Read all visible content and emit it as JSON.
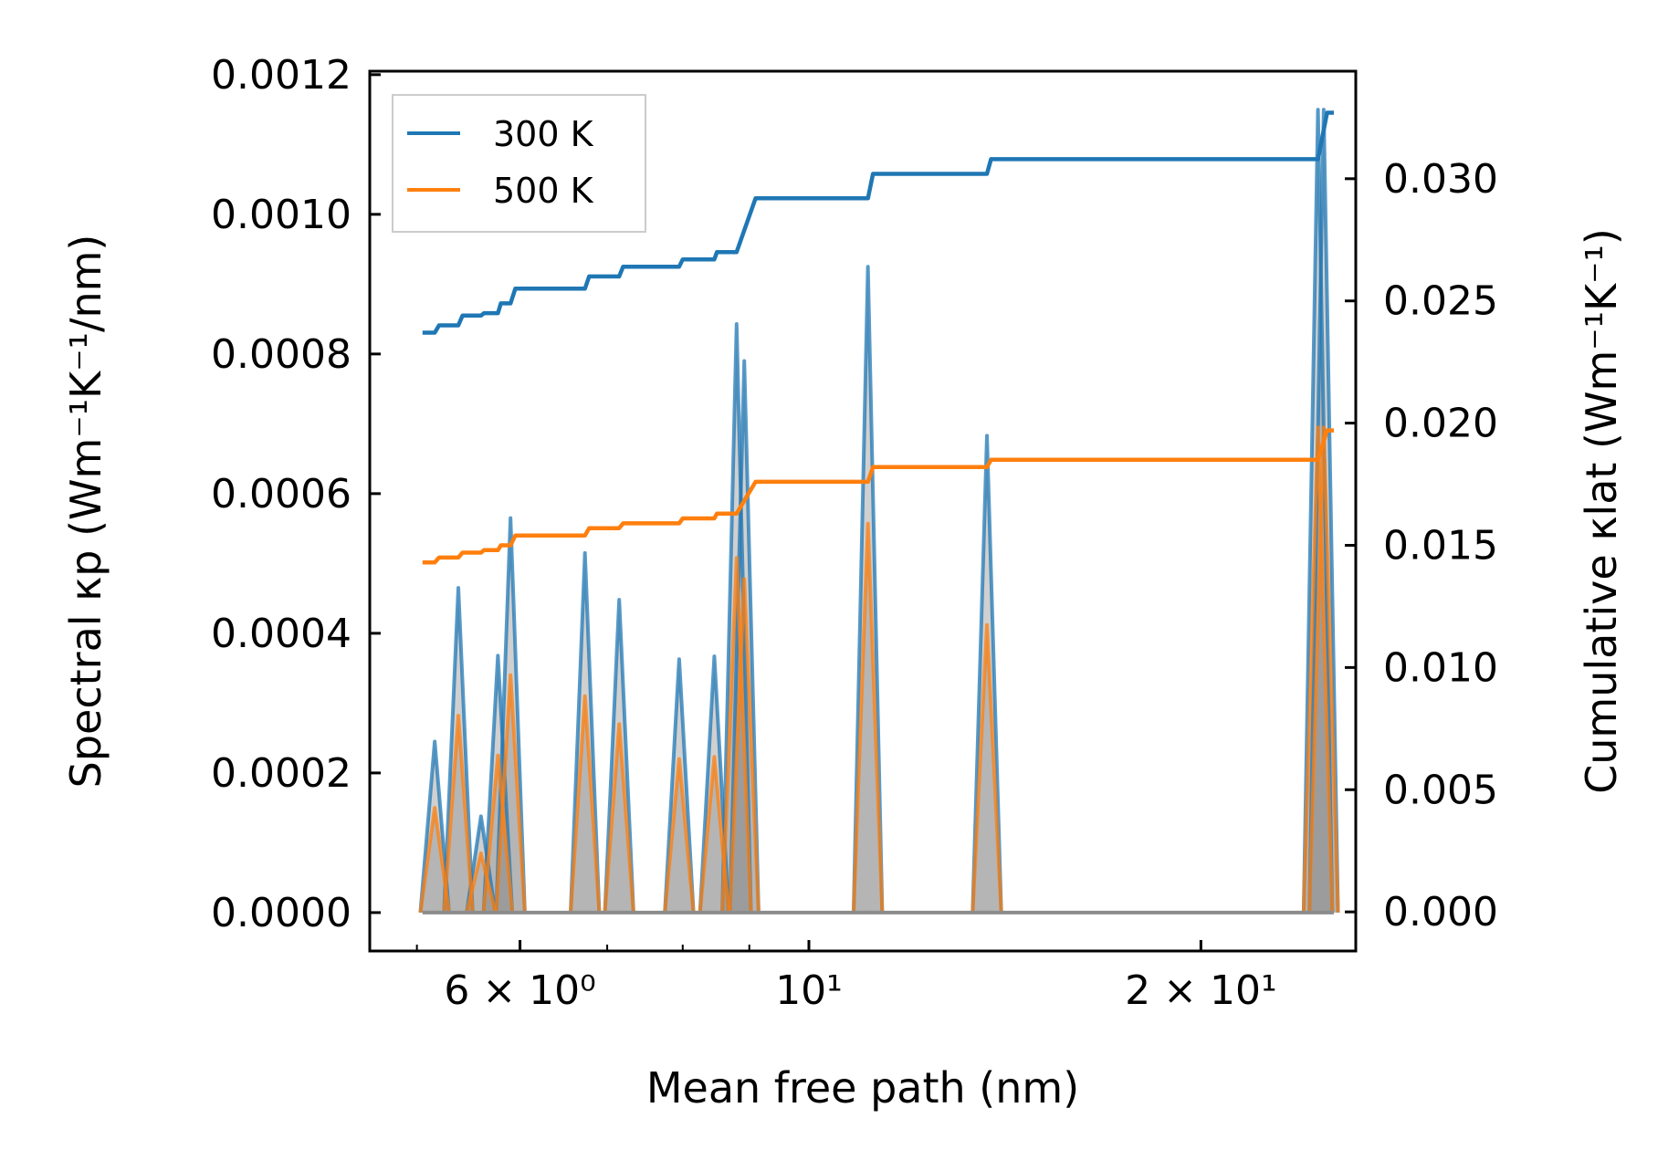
{
  "chart_data": {
    "type": "line",
    "x_scale": "log",
    "xlabel": "Mean free path (nm)",
    "ylabel_left": "Spectral κp (Wm⁻¹K⁻¹/nm)",
    "ylabel_right": "Cumulative κlat (Wm⁻¹K⁻¹)",
    "xlim": [
      4.6,
      26.3
    ],
    "ylim_left": [
      -5.5e-05,
      0.001205
    ],
    "ylim_right": [
      -0.0016,
      0.0344
    ],
    "x_ticks": [
      {
        "value": 6,
        "label": "6 × 10⁰"
      },
      {
        "value": 10,
        "label": "10¹"
      },
      {
        "value": 20,
        "label": "2 × 10¹"
      }
    ],
    "y_ticks_left": [
      {
        "value": 0.0,
        "label": "0.0000"
      },
      {
        "value": 0.0002,
        "label": "0.0002"
      },
      {
        "value": 0.0004,
        "label": "0.0004"
      },
      {
        "value": 0.0006,
        "label": "0.0006"
      },
      {
        "value": 0.0008,
        "label": "0.0008"
      },
      {
        "value": 0.001,
        "label": "0.0010"
      },
      {
        "value": 0.0012,
        "label": "0.0012"
      }
    ],
    "y_ticks_right": [
      {
        "value": 0.0,
        "label": "0.000"
      },
      {
        "value": 0.005,
        "label": "0.005"
      },
      {
        "value": 0.01,
        "label": "0.010"
      },
      {
        "value": 0.015,
        "label": "0.015"
      },
      {
        "value": 0.02,
        "label": "0.020"
      },
      {
        "value": 0.025,
        "label": "0.025"
      },
      {
        "value": 0.03,
        "label": "0.030"
      }
    ],
    "legend": [
      {
        "name": "300 K",
        "color": "#1f77b4"
      },
      {
        "name": "500 K",
        "color": "#ff7f0e"
      }
    ],
    "legend_position": "upper-left",
    "series": [
      {
        "name": "300 K",
        "color": "#1f77b4",
        "peaks": [
          {
            "x": 5.16,
            "y": 0.000245
          },
          {
            "x": 5.38,
            "y": 0.000465
          },
          {
            "x": 5.6,
            "y": 0.000138
          },
          {
            "x": 5.77,
            "y": 0.000368
          },
          {
            "x": 5.9,
            "y": 0.000565
          },
          {
            "x": 6.73,
            "y": 0.000515
          },
          {
            "x": 7.15,
            "y": 0.000448
          },
          {
            "x": 7.95,
            "y": 0.000363
          },
          {
            "x": 8.46,
            "y": 0.000367
          },
          {
            "x": 8.8,
            "y": 0.000843
          },
          {
            "x": 8.92,
            "y": 0.00079
          },
          {
            "x": 11.1,
            "y": 0.000925
          },
          {
            "x": 13.7,
            "y": 0.000683
          },
          {
            "x": 24.6,
            "y": 0.00115
          },
          {
            "x": 24.85,
            "y": 0.00115
          }
        ],
        "cumulative": [
          {
            "x": 5.05,
            "y": 0.0237
          },
          {
            "x": 5.16,
            "y": 0.0237
          },
          {
            "x": 5.2,
            "y": 0.024
          },
          {
            "x": 5.38,
            "y": 0.024
          },
          {
            "x": 5.42,
            "y": 0.0244
          },
          {
            "x": 5.6,
            "y": 0.0244
          },
          {
            "x": 5.63,
            "y": 0.0245
          },
          {
            "x": 5.77,
            "y": 0.0245
          },
          {
            "x": 5.8,
            "y": 0.0249
          },
          {
            "x": 5.9,
            "y": 0.0249
          },
          {
            "x": 5.95,
            "y": 0.0255
          },
          {
            "x": 6.73,
            "y": 0.0255
          },
          {
            "x": 6.78,
            "y": 0.026
          },
          {
            "x": 7.15,
            "y": 0.026
          },
          {
            "x": 7.2,
            "y": 0.0264
          },
          {
            "x": 7.95,
            "y": 0.0264
          },
          {
            "x": 8.0,
            "y": 0.0267
          },
          {
            "x": 8.46,
            "y": 0.0267
          },
          {
            "x": 8.5,
            "y": 0.027
          },
          {
            "x": 8.8,
            "y": 0.027
          },
          {
            "x": 9.1,
            "y": 0.0292
          },
          {
            "x": 11.1,
            "y": 0.0292
          },
          {
            "x": 11.2,
            "y": 0.0302
          },
          {
            "x": 13.7,
            "y": 0.0302
          },
          {
            "x": 13.8,
            "y": 0.0308
          },
          {
            "x": 24.6,
            "y": 0.0308
          },
          {
            "x": 25.0,
            "y": 0.0327
          },
          {
            "x": 25.3,
            "y": 0.0327
          }
        ]
      },
      {
        "name": "500 K",
        "color": "#ff7f0e",
        "peaks": [
          {
            "x": 5.16,
            "y": 0.00015
          },
          {
            "x": 5.38,
            "y": 0.000282
          },
          {
            "x": 5.6,
            "y": 8.5e-05
          },
          {
            "x": 5.77,
            "y": 0.000225
          },
          {
            "x": 5.9,
            "y": 0.00034
          },
          {
            "x": 6.73,
            "y": 0.00031
          },
          {
            "x": 7.15,
            "y": 0.00027
          },
          {
            "x": 7.95,
            "y": 0.00022
          },
          {
            "x": 8.46,
            "y": 0.000223
          },
          {
            "x": 8.8,
            "y": 0.000508
          },
          {
            "x": 8.92,
            "y": 0.000478
          },
          {
            "x": 11.1,
            "y": 0.000557
          },
          {
            "x": 13.7,
            "y": 0.000412
          },
          {
            "x": 24.6,
            "y": 0.000695
          },
          {
            "x": 24.85,
            "y": 0.000695
          }
        ],
        "cumulative": [
          {
            "x": 5.05,
            "y": 0.0143
          },
          {
            "x": 5.16,
            "y": 0.0143
          },
          {
            "x": 5.2,
            "y": 0.0145
          },
          {
            "x": 5.38,
            "y": 0.0145
          },
          {
            "x": 5.42,
            "y": 0.0147
          },
          {
            "x": 5.6,
            "y": 0.0147
          },
          {
            "x": 5.63,
            "y": 0.0148
          },
          {
            "x": 5.77,
            "y": 0.0148
          },
          {
            "x": 5.8,
            "y": 0.015
          },
          {
            "x": 5.9,
            "y": 0.015
          },
          {
            "x": 5.95,
            "y": 0.0154
          },
          {
            "x": 6.73,
            "y": 0.0154
          },
          {
            "x": 6.78,
            "y": 0.0157
          },
          {
            "x": 7.15,
            "y": 0.0157
          },
          {
            "x": 7.2,
            "y": 0.0159
          },
          {
            "x": 7.95,
            "y": 0.0159
          },
          {
            "x": 8.0,
            "y": 0.0161
          },
          {
            "x": 8.46,
            "y": 0.0161
          },
          {
            "x": 8.5,
            "y": 0.0163
          },
          {
            "x": 8.8,
            "y": 0.0163
          },
          {
            "x": 9.1,
            "y": 0.0176
          },
          {
            "x": 11.1,
            "y": 0.0176
          },
          {
            "x": 11.2,
            "y": 0.0182
          },
          {
            "x": 13.7,
            "y": 0.0182
          },
          {
            "x": 13.8,
            "y": 0.0185
          },
          {
            "x": 24.6,
            "y": 0.0185
          },
          {
            "x": 25.0,
            "y": 0.0197
          },
          {
            "x": 25.3,
            "y": 0.0197
          }
        ]
      }
    ],
    "fill_color": "#8e8e8e",
    "baseline_color": "#8c8c8c"
  }
}
